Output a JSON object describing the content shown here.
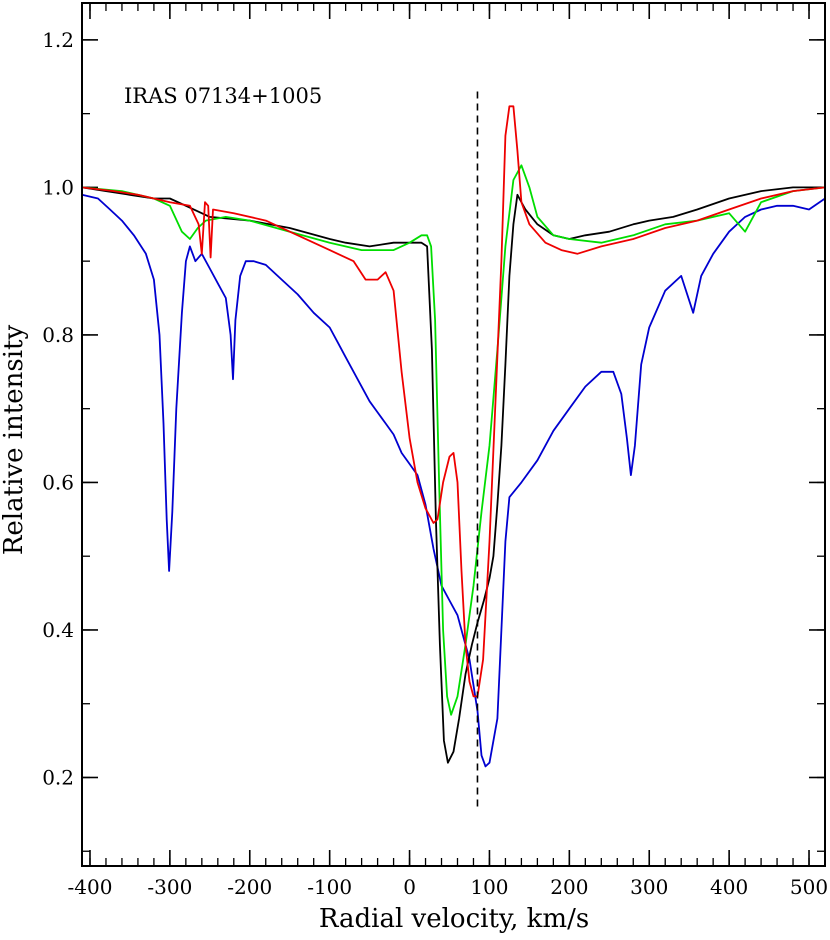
{
  "chart_data": {
    "type": "line",
    "title": "",
    "xlabel": "Radial velocity, km/s",
    "ylabel": "Relative intensity",
    "annotation": "IRAS 07134+1005",
    "xlim": [
      -410,
      520
    ],
    "ylim": [
      0.08,
      1.25
    ],
    "xticks": [
      -400,
      -300,
      -200,
      -100,
      0,
      100,
      200,
      300,
      400,
      500
    ],
    "xtick_labels": [
      "-400",
      "-300",
      "-200",
      "-100",
      "0",
      "100",
      "200",
      "300",
      "400",
      "500"
    ],
    "yticks": [
      0.2,
      0.4,
      0.6,
      0.8,
      1.0,
      1.2
    ],
    "ytick_labels": [
      "0.2",
      "0.4",
      "0.6",
      "0.8",
      "1.0",
      "1.2"
    ],
    "x_minor_step": 20,
    "y_minor_step": 0.1,
    "grid": false,
    "reference_line": {
      "x": 85,
      "y_range": [
        0.16,
        1.13
      ],
      "style": "dashed",
      "color": "#000000"
    },
    "series": [
      {
        "color": "#0000d0",
        "points": [
          [
            -410,
            0.99
          ],
          [
            -390,
            0.985
          ],
          [
            -375,
            0.97
          ],
          [
            -360,
            0.955
          ],
          [
            -345,
            0.935
          ],
          [
            -330,
            0.91
          ],
          [
            -320,
            0.875
          ],
          [
            -313,
            0.8
          ],
          [
            -308,
            0.68
          ],
          [
            -304,
            0.55
          ],
          [
            -301,
            0.48
          ],
          [
            -297,
            0.56
          ],
          [
            -292,
            0.7
          ],
          [
            -285,
            0.83
          ],
          [
            -280,
            0.9
          ],
          [
            -275,
            0.92
          ],
          [
            -268,
            0.9
          ],
          [
            -260,
            0.91
          ],
          [
            -250,
            0.89
          ],
          [
            -240,
            0.87
          ],
          [
            -230,
            0.85
          ],
          [
            -224,
            0.8
          ],
          [
            -221,
            0.74
          ],
          [
            -218,
            0.82
          ],
          [
            -212,
            0.88
          ],
          [
            -205,
            0.9
          ],
          [
            -195,
            0.9
          ],
          [
            -180,
            0.895
          ],
          [
            -160,
            0.875
          ],
          [
            -140,
            0.855
          ],
          [
            -120,
            0.83
          ],
          [
            -100,
            0.81
          ],
          [
            -90,
            0.79
          ],
          [
            -80,
            0.77
          ],
          [
            -70,
            0.75
          ],
          [
            -60,
            0.73
          ],
          [
            -50,
            0.71
          ],
          [
            -40,
            0.695
          ],
          [
            -30,
            0.68
          ],
          [
            -20,
            0.665
          ],
          [
            -10,
            0.64
          ],
          [
            0,
            0.625
          ],
          [
            10,
            0.61
          ],
          [
            20,
            0.57
          ],
          [
            30,
            0.51
          ],
          [
            40,
            0.46
          ],
          [
            50,
            0.44
          ],
          [
            60,
            0.42
          ],
          [
            65,
            0.4
          ],
          [
            75,
            0.36
          ],
          [
            85,
            0.29
          ],
          [
            90,
            0.23
          ],
          [
            95,
            0.215
          ],
          [
            100,
            0.22
          ],
          [
            110,
            0.28
          ],
          [
            115,
            0.4
          ],
          [
            120,
            0.52
          ],
          [
            125,
            0.58
          ],
          [
            140,
            0.6
          ],
          [
            160,
            0.63
          ],
          [
            180,
            0.67
          ],
          [
            200,
            0.7
          ],
          [
            220,
            0.73
          ],
          [
            240,
            0.75
          ],
          [
            255,
            0.75
          ],
          [
            265,
            0.72
          ],
          [
            272,
            0.66
          ],
          [
            277,
            0.61
          ],
          [
            282,
            0.65
          ],
          [
            290,
            0.76
          ],
          [
            300,
            0.81
          ],
          [
            320,
            0.86
          ],
          [
            340,
            0.88
          ],
          [
            355,
            0.83
          ],
          [
            365,
            0.88
          ],
          [
            380,
            0.91
          ],
          [
            400,
            0.94
          ],
          [
            420,
            0.96
          ],
          [
            440,
            0.97
          ],
          [
            460,
            0.975
          ],
          [
            480,
            0.975
          ],
          [
            500,
            0.97
          ],
          [
            520,
            0.985
          ]
        ]
      },
      {
        "color": "#000000",
        "points": [
          [
            -410,
            1.0
          ],
          [
            -380,
            0.995
          ],
          [
            -350,
            0.99
          ],
          [
            -320,
            0.985
          ],
          [
            -300,
            0.985
          ],
          [
            -280,
            0.975
          ],
          [
            -250,
            0.96
          ],
          [
            -200,
            0.955
          ],
          [
            -150,
            0.945
          ],
          [
            -100,
            0.93
          ],
          [
            -80,
            0.925
          ],
          [
            -50,
            0.92
          ],
          [
            -20,
            0.925
          ],
          [
            0,
            0.925
          ],
          [
            15,
            0.925
          ],
          [
            22,
            0.92
          ],
          [
            28,
            0.78
          ],
          [
            33,
            0.55
          ],
          [
            38,
            0.38
          ],
          [
            43,
            0.25
          ],
          [
            48,
            0.22
          ],
          [
            55,
            0.235
          ],
          [
            62,
            0.28
          ],
          [
            70,
            0.34
          ],
          [
            78,
            0.38
          ],
          [
            85,
            0.41
          ],
          [
            93,
            0.44
          ],
          [
            100,
            0.47
          ],
          [
            105,
            0.5
          ],
          [
            110,
            0.57
          ],
          [
            115,
            0.65
          ],
          [
            120,
            0.76
          ],
          [
            125,
            0.88
          ],
          [
            130,
            0.95
          ],
          [
            135,
            0.99
          ],
          [
            145,
            0.97
          ],
          [
            160,
            0.95
          ],
          [
            180,
            0.935
          ],
          [
            200,
            0.93
          ],
          [
            220,
            0.935
          ],
          [
            250,
            0.94
          ],
          [
            280,
            0.95
          ],
          [
            300,
            0.955
          ],
          [
            330,
            0.96
          ],
          [
            360,
            0.97
          ],
          [
            400,
            0.985
          ],
          [
            440,
            0.995
          ],
          [
            480,
            1.0
          ],
          [
            520,
            1.0
          ]
        ]
      },
      {
        "color": "#00dd00",
        "points": [
          [
            -410,
            1.0
          ],
          [
            -360,
            0.995
          ],
          [
            -320,
            0.985
          ],
          [
            -300,
            0.975
          ],
          [
            -285,
            0.94
          ],
          [
            -275,
            0.93
          ],
          [
            -265,
            0.945
          ],
          [
            -255,
            0.955
          ],
          [
            -230,
            0.96
          ],
          [
            -200,
            0.955
          ],
          [
            -150,
            0.94
          ],
          [
            -100,
            0.925
          ],
          [
            -60,
            0.915
          ],
          [
            -20,
            0.915
          ],
          [
            0,
            0.925
          ],
          [
            15,
            0.935
          ],
          [
            22,
            0.935
          ],
          [
            27,
            0.92
          ],
          [
            32,
            0.82
          ],
          [
            37,
            0.6
          ],
          [
            42,
            0.4
          ],
          [
            47,
            0.31
          ],
          [
            52,
            0.285
          ],
          [
            60,
            0.31
          ],
          [
            70,
            0.38
          ],
          [
            80,
            0.46
          ],
          [
            90,
            0.56
          ],
          [
            100,
            0.65
          ],
          [
            110,
            0.78
          ],
          [
            120,
            0.92
          ],
          [
            130,
            1.01
          ],
          [
            140,
            1.03
          ],
          [
            150,
            1.0
          ],
          [
            160,
            0.96
          ],
          [
            180,
            0.935
          ],
          [
            200,
            0.93
          ],
          [
            240,
            0.925
          ],
          [
            280,
            0.935
          ],
          [
            320,
            0.95
          ],
          [
            360,
            0.955
          ],
          [
            400,
            0.965
          ],
          [
            420,
            0.94
          ],
          [
            440,
            0.98
          ],
          [
            480,
            0.995
          ],
          [
            520,
            1.0
          ]
        ]
      },
      {
        "color": "#ee0000",
        "points": [
          [
            -410,
            1.0
          ],
          [
            -370,
            0.995
          ],
          [
            -340,
            0.99
          ],
          [
            -300,
            0.98
          ],
          [
            -275,
            0.975
          ],
          [
            -264,
            0.95
          ],
          [
            -260,
            0.91
          ],
          [
            -256,
            0.98
          ],
          [
            -252,
            0.975
          ],
          [
            -249,
            0.905
          ],
          [
            -246,
            0.97
          ],
          [
            -220,
            0.965
          ],
          [
            -180,
            0.955
          ],
          [
            -140,
            0.935
          ],
          [
            -100,
            0.915
          ],
          [
            -70,
            0.9
          ],
          [
            -55,
            0.875
          ],
          [
            -40,
            0.875
          ],
          [
            -30,
            0.885
          ],
          [
            -20,
            0.86
          ],
          [
            -10,
            0.75
          ],
          [
            0,
            0.66
          ],
          [
            10,
            0.6
          ],
          [
            20,
            0.565
          ],
          [
            30,
            0.545
          ],
          [
            35,
            0.55
          ],
          [
            42,
            0.6
          ],
          [
            50,
            0.635
          ],
          [
            55,
            0.64
          ],
          [
            60,
            0.6
          ],
          [
            65,
            0.48
          ],
          [
            70,
            0.38
          ],
          [
            75,
            0.33
          ],
          [
            80,
            0.31
          ],
          [
            85,
            0.31
          ],
          [
            92,
            0.36
          ],
          [
            100,
            0.52
          ],
          [
            108,
            0.72
          ],
          [
            115,
            0.9
          ],
          [
            120,
            1.07
          ],
          [
            125,
            1.11
          ],
          [
            130,
            1.11
          ],
          [
            135,
            1.05
          ],
          [
            140,
            0.98
          ],
          [
            150,
            0.95
          ],
          [
            170,
            0.925
          ],
          [
            190,
            0.915
          ],
          [
            210,
            0.91
          ],
          [
            240,
            0.92
          ],
          [
            280,
            0.93
          ],
          [
            320,
            0.945
          ],
          [
            360,
            0.955
          ],
          [
            400,
            0.97
          ],
          [
            440,
            0.985
          ],
          [
            480,
            0.995
          ],
          [
            520,
            1.0
          ]
        ]
      }
    ]
  }
}
